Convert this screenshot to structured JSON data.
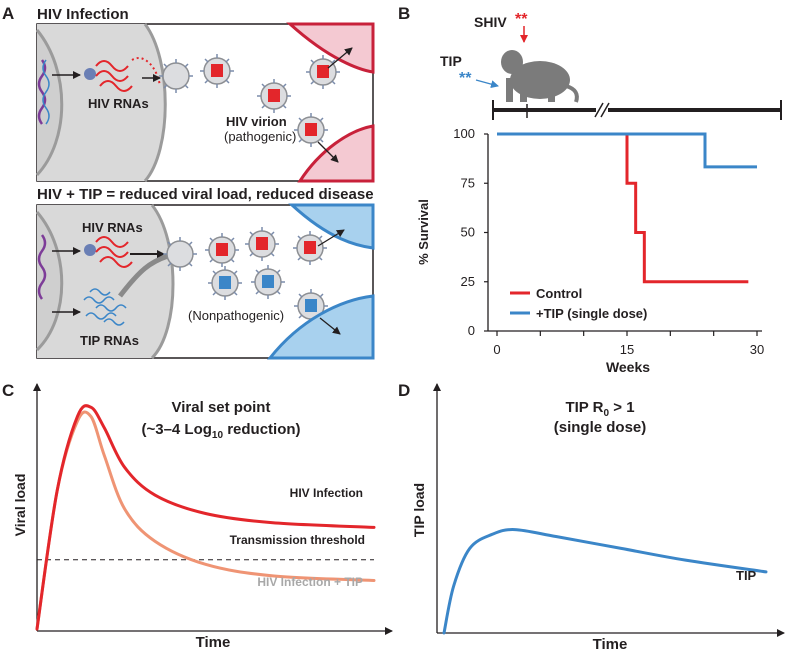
{
  "panels": {
    "a": {
      "letter": "A",
      "top_title": "HIV Infection",
      "top_rna_label": "HIV RNAs",
      "virion_label": "HIV virion",
      "virion_sub": "(pathogenic)",
      "bottom_title": "HIV + TIP = reduced viral load, reduced disease",
      "bottom_hiv_rna_label": "HIV RNAs",
      "bottom_tip_rna_label": "TIP RNAs",
      "nonpath_label": "(Nonpathogenic)"
    },
    "b": {
      "letter": "B",
      "shiv_label": "SHIV",
      "tip_label": "TIP",
      "stars": "**",
      "ylabel": "% Survival",
      "xlabel": "Weeks",
      "legend_control": "Control",
      "legend_tip": "+TIP (single dose)"
    },
    "c": {
      "letter": "C",
      "title_line1": "Viral set point",
      "title_pre": "(~3–4 Log",
      "title_sub": "10",
      "title_post": " reduction)",
      "ylabel": "Viral load",
      "xlabel": "Time",
      "hiv_label": "HIV Infection",
      "threshold_label": "Transmission threshold",
      "tip_label": "HIV Infection + TIP"
    },
    "d": {
      "letter": "D",
      "title_pre": "TIP R",
      "title_sub": "0",
      "title_post": " > 1",
      "title_line2": "(single dose)",
      "ylabel": "TIP load",
      "xlabel": "Time",
      "curve_label": "TIP"
    }
  },
  "colors": {
    "hiv_red": "#e3262b",
    "tip_blue": "#3b86c8",
    "tip_salmon": "#ef9474",
    "axis": "#231f20",
    "cell_gray": "#d9d9d9",
    "tissue_pink": "#f4c9d2",
    "tissue_blue": "#a8d1ee"
  },
  "chart_data": [
    {
      "type": "line",
      "title": "",
      "xlabel": "Weeks",
      "ylabel": "% Survival",
      "xlim": [
        0,
        30
      ],
      "ylim": [
        0,
        100
      ],
      "xticks": [
        0,
        15,
        30
      ],
      "yticks": [
        0,
        25,
        50,
        75,
        100
      ],
      "series": [
        {
          "name": "Control",
          "color": "#e3262b",
          "step": true,
          "x": [
            0,
            15,
            15,
            16,
            16,
            17,
            17,
            29
          ],
          "y": [
            100,
            100,
            75,
            75,
            50,
            50,
            25,
            25
          ]
        },
        {
          "name": "+TIP (single dose)",
          "color": "#3b86c8",
          "step": true,
          "x": [
            0,
            24,
            24,
            30
          ],
          "y": [
            100,
            100,
            83.3,
            83.3
          ]
        }
      ]
    },
    {
      "type": "line",
      "title": "Viral set point (~3–4 Log10 reduction)",
      "xlabel": "Time",
      "ylabel": "Viral load",
      "ylim": [
        0,
        100
      ],
      "xlim": [
        0,
        100
      ],
      "threshold": {
        "label": "Transmission threshold",
        "y": 30
      },
      "series": [
        {
          "name": "HIV Infection",
          "color": "#e3262b",
          "x": [
            0,
            6,
            12,
            16,
            20,
            26,
            35,
            50,
            70,
            100
          ],
          "y": [
            0,
            60,
            92,
            96,
            87,
            70,
            58,
            50,
            46,
            44
          ]
        },
        {
          "name": "HIV Infection + TIP",
          "color": "#ef9474",
          "x": [
            0,
            6,
            12,
            16,
            20,
            26,
            35,
            50,
            70,
            100
          ],
          "y": [
            0,
            60,
            90,
            92,
            75,
            52,
            38,
            28,
            23,
            21
          ]
        }
      ]
    },
    {
      "type": "line",
      "title": "TIP R0 > 1 (single dose)",
      "xlabel": "Time",
      "ylabel": "TIP load",
      "xlim": [
        0,
        100
      ],
      "ylim": [
        0,
        100
      ],
      "series": [
        {
          "name": "TIP",
          "color": "#3b86c8",
          "x": [
            0,
            3,
            8,
            15,
            22,
            35,
            55,
            75,
            100
          ],
          "y": [
            0,
            20,
            36,
            42,
            44,
            41,
            36,
            31,
            26
          ]
        }
      ]
    }
  ]
}
